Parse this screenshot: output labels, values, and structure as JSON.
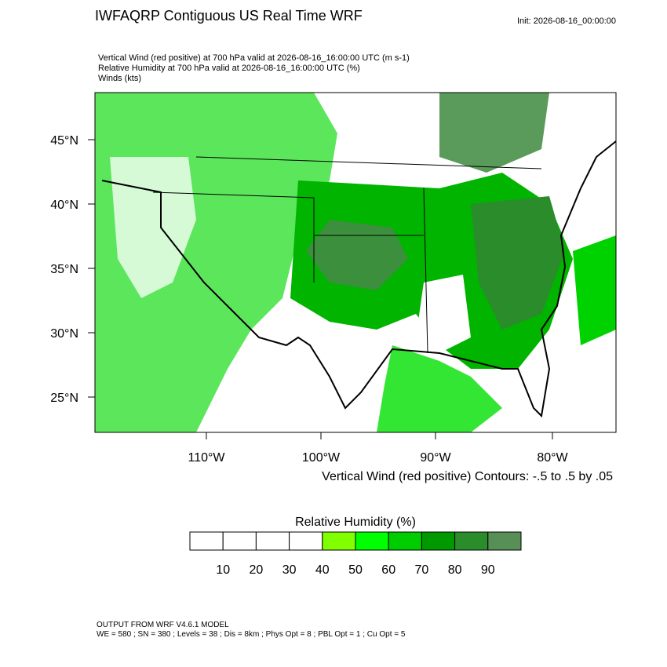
{
  "header": {
    "title": "IWFAQRP Contiguous US Real Time WRF",
    "init": "Init: 2026-08-16_00:00:00"
  },
  "subtitle": [
    "Vertical Wind (red positive) at 700 hPa valid at 2026-08-16_16:00:00 UTC   (m s-1)",
    "Relative Humidity at 700 hPa valid at 2026-08-16_16:00:00 UTC   (%)",
    "Winds   (kts)"
  ],
  "map": {
    "lat_labels": [
      "45°N",
      "40°N",
      "35°N",
      "30°N",
      "25°N"
    ],
    "lon_labels": [
      "110°W",
      "100°W",
      "90°W",
      "80°W"
    ],
    "contour_note": "Vertical Wind (red positive) Contours: -.5 to .5 by .05"
  },
  "colorbar": {
    "title": "Relative Humidity  (%)",
    "labels": [
      10,
      20,
      30,
      40,
      50,
      60,
      70,
      80,
      90
    ],
    "colors": [
      "#ffffff",
      "#ffffff",
      "#ffffff",
      "#ffffff",
      "#80ff00",
      "#00ff00",
      "#00cd00",
      "#009a00",
      "#2a8c2a",
      "#578f57"
    ]
  },
  "footer": [
    "OUTPUT FROM WRF V4.6.1 MODEL",
    "WE = 580 ; SN = 380 ; Levels = 38 ; Dis = 8km ; Phys Opt = 8 ; PBL Opt = 1 ; Cu Opt = 5"
  ]
}
